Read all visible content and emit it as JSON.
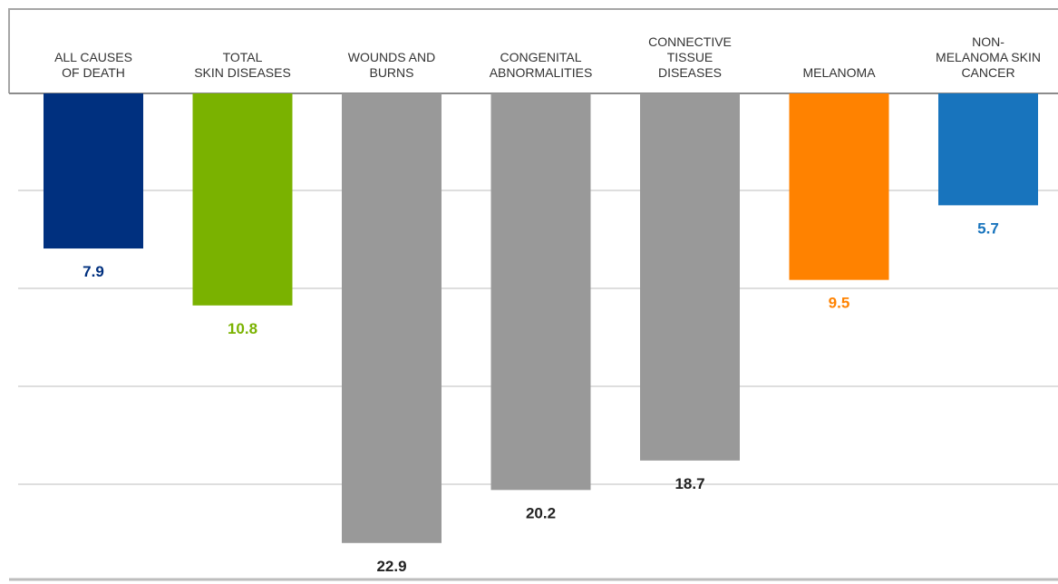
{
  "chart_data": {
    "type": "bar",
    "orientation": "downward",
    "title": "",
    "xlabel": "",
    "ylabel": "",
    "ylim": [
      0,
      25
    ],
    "grid": true,
    "legend": "none",
    "categories": [
      [
        "ALL CAUSES",
        "OF DEATH"
      ],
      [
        "TOTAL",
        "SKIN DISEASES"
      ],
      [
        "WOUNDS AND",
        "BURNS"
      ],
      [
        "CONGENITAL",
        "ABNORMALITIES"
      ],
      [
        "CONNECTIVE",
        "TISSUE",
        "DISEASES"
      ],
      [
        "MELANOMA"
      ],
      [
        "NON-",
        "MELANOMA SKIN",
        "CANCER"
      ]
    ],
    "values": [
      7.9,
      10.8,
      22.9,
      20.2,
      18.7,
      9.5,
      5.7
    ],
    "value_labels": [
      "7.9",
      "10.8",
      "22.9",
      "20.2",
      "18.7",
      "9.5",
      "5.7"
    ],
    "bar_colors": [
      "#00307f",
      "#7ab200",
      "#999999",
      "#999999",
      "#999999",
      "#ff8200",
      "#1874bd"
    ],
    "label_colors": [
      "#00307f",
      "#7ab200",
      "#222222",
      "#222222",
      "#222222",
      "#ff8200",
      "#1874bd"
    ]
  }
}
